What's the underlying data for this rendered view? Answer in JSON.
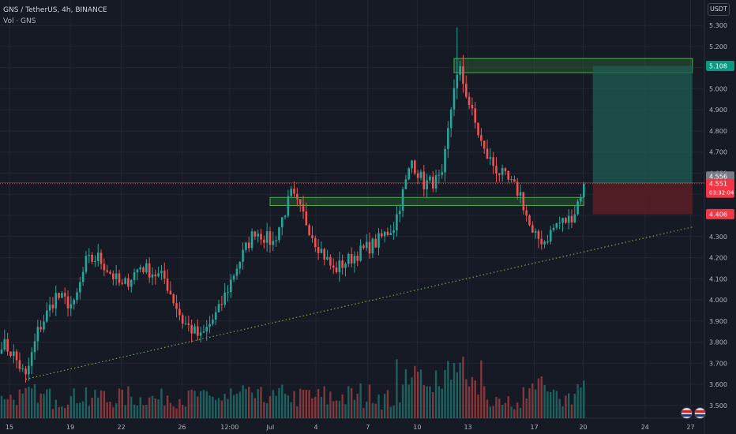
{
  "legend": {
    "symbol": "GNS / TetherUS, 4h, BINANCE",
    "volume": "Vol · GNS"
  },
  "currency": "USDT",
  "colors": {
    "background": "#161a25",
    "grid": "#242733",
    "up": "#26a69a",
    "down": "#ef5350",
    "zone_fill": "#2e7d32",
    "zone_stroke": "#4caf50",
    "target_fill": "#1e5c52",
    "stop_fill": "#5a1f24",
    "trendline": "#8bc34a"
  },
  "chart_data": {
    "type": "candlestick",
    "timeframe": "4h",
    "y_axis": {
      "range": [
        3.44,
        5.42
      ],
      "ticks": [
        "5.300",
        "5.200",
        "5.100",
        "5.000",
        "4.900",
        "4.800",
        "4.700",
        "4.600",
        "4.500",
        "4.400",
        "4.300",
        "4.200",
        "4.100",
        "4.000",
        "3.900",
        "3.800",
        "3.700",
        "3.600",
        "3.500"
      ]
    },
    "x_axis": {
      "ticks": [
        "15",
        "19",
        "22",
        "26",
        "12:00",
        "Jul",
        "4",
        "7",
        "10",
        "13",
        "17",
        "20",
        "24",
        "27"
      ]
    },
    "anchors": [
      {
        "bar": 0,
        "p": 3.8
      },
      {
        "bar": 4,
        "p": 3.74
      },
      {
        "bar": 8,
        "p": 3.63
      },
      {
        "bar": 12,
        "p": 3.85
      },
      {
        "bar": 18,
        "p": 4.02
      },
      {
        "bar": 24,
        "p": 3.97
      },
      {
        "bar": 28,
        "p": 4.18
      },
      {
        "bar": 32,
        "p": 4.2
      },
      {
        "bar": 40,
        "p": 4.06
      },
      {
        "bar": 46,
        "p": 4.16
      },
      {
        "bar": 54,
        "p": 4.1
      },
      {
        "bar": 60,
        "p": 3.9
      },
      {
        "bar": 66,
        "p": 3.82
      },
      {
        "bar": 72,
        "p": 3.95
      },
      {
        "bar": 78,
        "p": 4.16
      },
      {
        "bar": 84,
        "p": 4.33
      },
      {
        "bar": 90,
        "p": 4.27
      },
      {
        "bar": 96,
        "p": 4.5
      },
      {
        "bar": 100,
        "p": 4.4
      },
      {
        "bar": 104,
        "p": 4.28
      },
      {
        "bar": 110,
        "p": 4.14
      },
      {
        "bar": 118,
        "p": 4.22
      },
      {
        "bar": 124,
        "p": 4.27
      },
      {
        "bar": 130,
        "p": 4.35
      },
      {
        "bar": 136,
        "p": 4.66
      },
      {
        "bar": 140,
        "p": 4.55
      },
      {
        "bar": 146,
        "p": 4.57
      },
      {
        "bar": 150,
        "p": 5.02
      },
      {
        "bar": 152,
        "p": 5.08
      },
      {
        "bar": 156,
        "p": 4.88
      },
      {
        "bar": 160,
        "p": 4.7
      },
      {
        "bar": 164,
        "p": 4.62
      },
      {
        "bar": 168,
        "p": 4.56
      },
      {
        "bar": 172,
        "p": 4.5
      },
      {
        "bar": 176,
        "p": 4.3
      },
      {
        "bar": 180,
        "p": 4.28
      },
      {
        "bar": 184,
        "p": 4.36
      },
      {
        "bar": 188,
        "p": 4.38
      },
      {
        "bar": 190,
        "p": 4.42
      },
      {
        "bar": 193,
        "p": 4.55
      }
    ],
    "wicks": [
      {
        "bar": 151,
        "high": 5.29,
        "low": 4.95
      },
      {
        "bar": 153,
        "high": 5.16,
        "low": 4.98
      }
    ],
    "levels": {
      "last_price": "4.551",
      "countdown": "03:32:04",
      "cursor_price": "4.556",
      "target": "5.108",
      "stop": "4.406"
    },
    "zones": [
      {
        "from_bar": 89,
        "to_bar": 193,
        "top": 4.485,
        "bottom": 4.447
      },
      {
        "from_bar": 150,
        "to_bar": 229,
        "top": 5.143,
        "bottom": 5.076
      }
    ],
    "position": {
      "from_bar": 196,
      "to_bar": 229,
      "entry": 4.551,
      "target": 5.108,
      "stop": 4.406
    },
    "trendline": {
      "from_bar": 8,
      "from_p": 3.625,
      "to_bar": 229,
      "to_p": 4.345
    }
  }
}
